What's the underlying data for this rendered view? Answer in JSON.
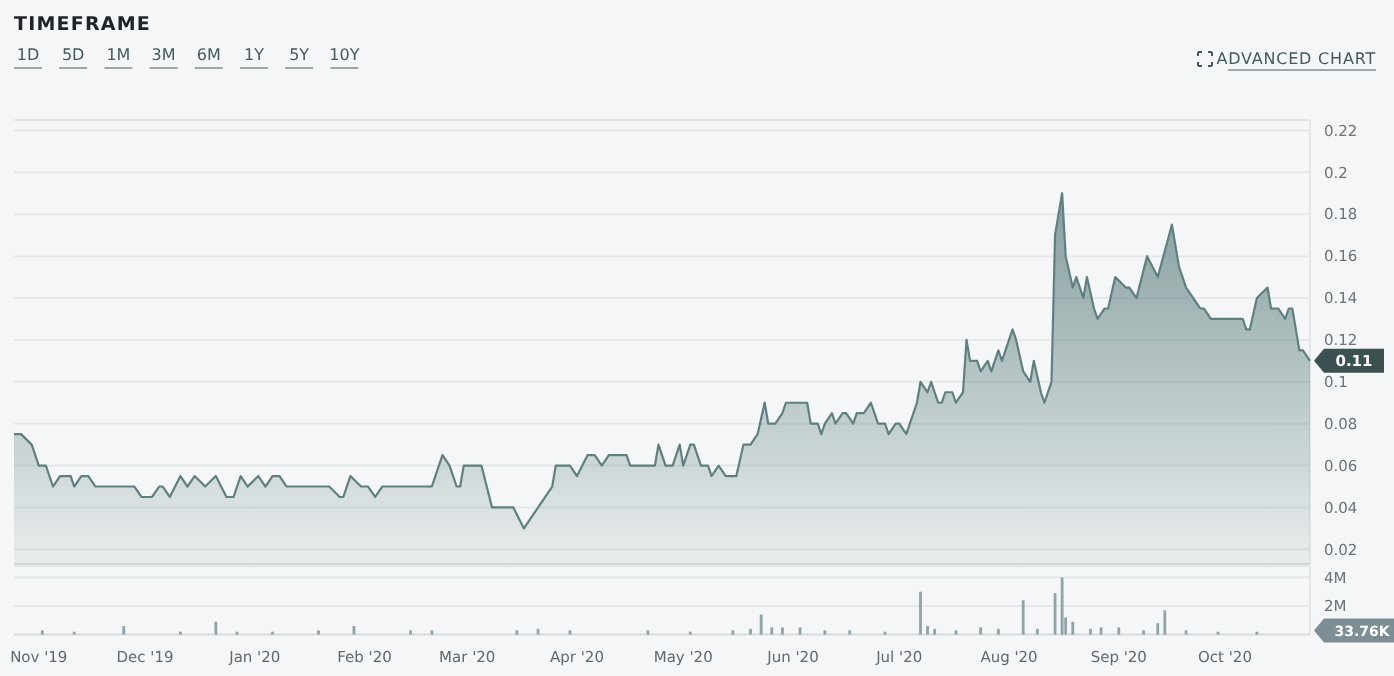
{
  "chart_data": [
    {
      "type": "area",
      "title": "TIMEFRAME",
      "annotations": [
        "1D",
        "5D",
        "1M",
        "3M",
        "6M",
        "1Y",
        "5Y",
        "10Y",
        "ADVANCED CHART",
        {
          "text": "0.11",
          "x": "2020-10-25",
          "y": 0.11
        }
      ],
      "xlim": [
        "2019-10-25",
        "2020-10-25"
      ],
      "ylim": [
        0.013,
        0.225
      ],
      "yticks": [
        0.02,
        0.04,
        0.06,
        0.08,
        0.1,
        0.12,
        0.14,
        0.16,
        0.18,
        0.2,
        0.22
      ],
      "tick_labels": "y",
      "grid": "y",
      "series": [
        {
          "color": "#5f8080",
          "x": [
            "2019-10-25",
            "2019-10-27",
            "2019-10-30",
            "2019-11-01",
            "2019-11-03",
            "2019-11-05",
            "2019-11-07",
            "2019-11-10",
            "2019-11-11",
            "2019-11-13",
            "2019-11-15",
            "2019-11-17",
            "2019-11-28",
            "2019-11-30",
            "2019-12-03",
            "2019-12-05",
            "2019-12-06",
            "2019-12-08",
            "2019-12-11",
            "2019-12-13",
            "2019-12-15",
            "2019-12-18",
            "2019-12-21",
            "2019-12-24",
            "2019-12-26",
            "2019-12-28",
            "2019-12-30",
            "2020-01-02",
            "2020-01-04",
            "2020-01-06",
            "2020-01-08",
            "2020-01-10",
            "2020-01-22",
            "2020-01-25",
            "2020-01-26",
            "2020-01-28",
            "2020-01-31",
            "2020-02-02",
            "2020-02-04",
            "2020-02-06",
            "2020-02-20",
            "2020-02-23",
            "2020-02-25",
            "2020-02-27",
            "2020-02-28",
            "2020-02-29",
            "2020-03-05",
            "2020-03-08",
            "2020-03-14",
            "2020-03-17",
            "2020-03-25",
            "2020-03-26",
            "2020-03-30",
            "2020-04-01",
            "2020-04-04",
            "2020-04-06",
            "2020-04-08",
            "2020-04-10",
            "2020-04-15",
            "2020-04-16",
            "2020-04-23",
            "2020-04-24",
            "2020-04-26",
            "2020-04-28",
            "2020-04-30",
            "2020-05-01",
            "2020-05-03",
            "2020-05-04",
            "2020-05-06",
            "2020-05-08",
            "2020-05-09",
            "2020-05-11",
            "2020-05-13",
            "2020-05-16",
            "2020-05-18",
            "2020-05-20",
            "2020-05-22",
            "2020-05-24",
            "2020-05-25",
            "2020-05-27",
            "2020-05-29",
            "2020-05-30",
            "2020-06-05",
            "2020-06-06",
            "2020-06-08",
            "2020-06-09",
            "2020-06-10",
            "2020-06-12",
            "2020-06-13",
            "2020-06-15",
            "2020-06-16",
            "2020-06-18",
            "2020-06-19",
            "2020-06-21",
            "2020-06-23",
            "2020-06-25",
            "2020-06-27",
            "2020-06-28",
            "2020-06-30",
            "2020-07-01",
            "2020-07-03",
            "2020-07-04",
            "2020-07-06",
            "2020-07-07",
            "2020-07-09",
            "2020-07-10",
            "2020-07-12",
            "2020-07-13",
            "2020-07-14",
            "2020-07-16",
            "2020-07-17",
            "2020-07-19",
            "2020-07-20",
            "2020-07-21",
            "2020-07-23",
            "2020-07-24",
            "2020-07-26",
            "2020-07-27",
            "2020-07-29",
            "2020-07-30",
            "2020-07-31",
            "2020-08-02",
            "2020-08-03",
            "2020-08-05",
            "2020-08-07",
            "2020-08-08",
            "2020-08-10",
            "2020-08-11",
            "2020-08-13",
            "2020-08-14",
            "2020-08-16",
            "2020-08-17",
            "2020-08-19",
            "2020-08-20",
            "2020-08-22",
            "2020-08-23",
            "2020-08-25",
            "2020-08-26",
            "2020-08-28",
            "2020-08-29",
            "2020-08-31",
            "2020-09-03",
            "2020-09-04",
            "2020-09-06",
            "2020-09-09",
            "2020-09-12",
            "2020-09-16",
            "2020-09-18",
            "2020-09-20",
            "2020-09-24",
            "2020-09-25",
            "2020-09-27",
            "2020-10-06",
            "2020-10-07",
            "2020-10-08",
            "2020-10-10",
            "2020-10-13",
            "2020-10-14",
            "2020-10-16",
            "2020-10-18",
            "2020-10-19",
            "2020-10-20",
            "2020-10-22",
            "2020-10-23",
            "2020-10-25"
          ],
          "values": [
            0.075,
            0.075,
            0.07,
            0.06,
            0.06,
            0.05,
            0.055,
            0.055,
            0.05,
            0.055,
            0.055,
            0.05,
            0.05,
            0.045,
            0.045,
            0.05,
            0.05,
            0.045,
            0.055,
            0.05,
            0.055,
            0.05,
            0.055,
            0.045,
            0.045,
            0.055,
            0.05,
            0.055,
            0.05,
            0.055,
            0.055,
            0.05,
            0.05,
            0.045,
            0.045,
            0.055,
            0.05,
            0.05,
            0.045,
            0.05,
            0.05,
            0.065,
            0.06,
            0.05,
            0.05,
            0.06,
            0.06,
            0.04,
            0.04,
            0.03,
            0.05,
            0.06,
            0.06,
            0.055,
            0.065,
            0.065,
            0.06,
            0.065,
            0.065,
            0.06,
            0.06,
            0.07,
            0.06,
            0.06,
            0.07,
            0.06,
            0.07,
            0.07,
            0.06,
            0.06,
            0.055,
            0.06,
            0.055,
            0.055,
            0.07,
            0.07,
            0.075,
            0.09,
            0.08,
            0.08,
            0.085,
            0.09,
            0.09,
            0.08,
            0.08,
            0.075,
            0.08,
            0.085,
            0.08,
            0.085,
            0.085,
            0.08,
            0.085,
            0.085,
            0.09,
            0.08,
            0.08,
            0.075,
            0.08,
            0.08,
            0.075,
            0.08,
            0.09,
            0.1,
            0.095,
            0.1,
            0.09,
            0.09,
            0.095,
            0.095,
            0.09,
            0.095,
            0.12,
            0.11,
            0.11,
            0.105,
            0.11,
            0.105,
            0.115,
            0.11,
            0.115,
            0.125,
            0.12,
            0.105,
            0.1,
            0.11,
            0.095,
            0.09,
            0.1,
            0.17,
            0.19,
            0.16,
            0.145,
            0.15,
            0.14,
            0.15,
            0.135,
            0.13,
            0.135,
            0.135,
            0.15,
            0.145,
            0.145,
            0.14,
            0.16,
            0.15,
            0.175,
            0.155,
            0.145,
            0.135,
            0.135,
            0.13,
            0.13,
            0.125,
            0.125,
            0.14,
            0.145,
            0.135,
            0.135,
            0.13,
            0.135,
            0.135,
            0.115,
            0.115,
            0.11
          ]
        }
      ]
    },
    {
      "type": "bar",
      "annotations": [
        "33.76K"
      ],
      "xlim": [
        "2019-10-25",
        "2020-10-25"
      ],
      "ylim": [
        0,
        4800000
      ],
      "yticks": [
        {
          "value": 2000000,
          "label": "2M"
        },
        {
          "value": 4000000,
          "label": "4M"
        }
      ],
      "grid": "y",
      "xticks": [
        {
          "value": "2019-11-01",
          "label": "Nov '19"
        },
        {
          "value": "2019-12-01",
          "label": "Dec '19"
        },
        {
          "value": "2020-01-01",
          "label": "Jan '20"
        },
        {
          "value": "2020-02-01",
          "label": "Feb '20"
        },
        {
          "value": "2020-03-01",
          "label": "Mar '20"
        },
        {
          "value": "2020-04-01",
          "label": "Apr '20"
        },
        {
          "value": "2020-05-01",
          "label": "May '20"
        },
        {
          "value": "2020-06-01",
          "label": "Jun '20"
        },
        {
          "value": "2020-07-01",
          "label": "Jul '20"
        },
        {
          "value": "2020-08-01",
          "label": "Aug '20"
        },
        {
          "value": "2020-09-01",
          "label": "Sep '20"
        },
        {
          "value": "2020-10-01",
          "label": "Oct '20"
        }
      ],
      "series": [
        {
          "color": "#8fa3a8",
          "x": [
            "2019-11-02",
            "2019-11-11",
            "2019-11-25",
            "2019-12-11",
            "2019-12-21",
            "2019-12-27",
            "2020-01-06",
            "2020-01-19",
            "2020-01-29",
            "2020-02-14",
            "2020-02-20",
            "2020-03-15",
            "2020-03-21",
            "2020-03-30",
            "2020-04-21",
            "2020-05-03",
            "2020-05-15",
            "2020-05-20",
            "2020-05-23",
            "2020-05-26",
            "2020-05-29",
            "2020-06-03",
            "2020-06-10",
            "2020-06-17",
            "2020-06-27",
            "2020-07-07",
            "2020-07-09",
            "2020-07-11",
            "2020-07-17",
            "2020-07-24",
            "2020-07-29",
            "2020-08-05",
            "2020-08-09",
            "2020-08-14",
            "2020-08-16",
            "2020-08-17",
            "2020-08-19",
            "2020-08-24",
            "2020-08-27",
            "2020-09-01",
            "2020-09-08",
            "2020-09-12",
            "2020-09-14",
            "2020-09-20",
            "2020-09-29",
            "2020-10-10"
          ],
          "values": [
            300000,
            200000,
            600000,
            200000,
            900000,
            200000,
            200000,
            300000,
            600000,
            300000,
            300000,
            300000,
            400000,
            300000,
            300000,
            200000,
            300000,
            400000,
            1400000,
            500000,
            500000,
            500000,
            300000,
            300000,
            200000,
            3000000,
            600000,
            400000,
            300000,
            500000,
            400000,
            2400000,
            400000,
            2900000,
            4000000,
            1200000,
            900000,
            400000,
            500000,
            500000,
            300000,
            800000,
            1700000,
            300000,
            200000,
            200000
          ]
        }
      ]
    }
  ]
}
